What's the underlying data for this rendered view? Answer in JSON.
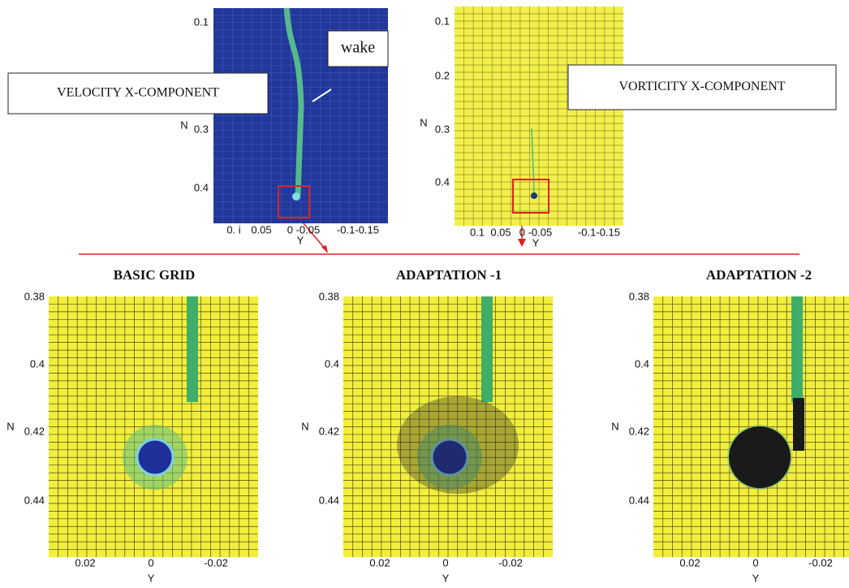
{
  "top_panels": [
    {
      "label": "VELOCITY X-COMPONENT",
      "annotation": "wake",
      "y_axis": "N",
      "x_axis": "Y",
      "yticks": [
        "0.1",
        "0.3",
        "0.4"
      ],
      "xticks": [
        "0. i",
        "0.05",
        "0 -0.05",
        "-0.1-0.15"
      ]
    },
    {
      "label": "VORTICITY X-COMPONENT",
      "y_axis": "N",
      "x_axis": "Y",
      "yticks": [
        "0.1",
        "0.2",
        "0.3",
        "0.4"
      ],
      "xticks": [
        "0.1",
        "0.05",
        "0 -0.05",
        "-0.1-0.15"
      ]
    }
  ],
  "bottom_panels": [
    {
      "title": "BASIC GRID",
      "y_axis": "N",
      "x_axis": "Y",
      "yticks": [
        "0.38",
        "0.4",
        "0.42",
        "0.44"
      ],
      "xticks": [
        "0.02",
        "0",
        "-0.02"
      ]
    },
    {
      "title": "ADAPTATION -1",
      "y_axis": "N",
      "x_axis": "Y",
      "yticks": [
        "0.38",
        "0.4",
        "0.42",
        "0.44"
      ],
      "xticks": [
        "0.02",
        "0",
        "-0.02"
      ]
    },
    {
      "title": "ADAPTATION -2",
      "y_axis": "N",
      "x_axis": "Y",
      "yticks": [
        "0.38",
        "0.4",
        "0.42",
        "0.44"
      ],
      "xticks": [
        "0.02",
        "0",
        "-0.02"
      ]
    }
  ]
}
